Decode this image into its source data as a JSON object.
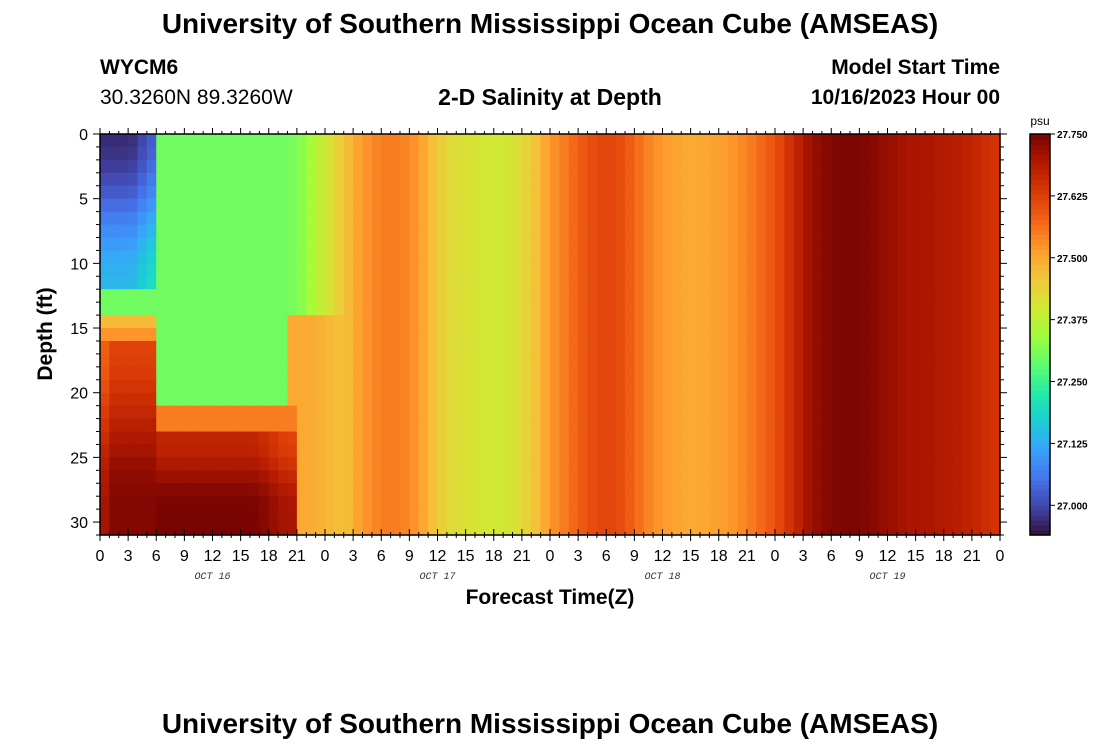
{
  "header": {
    "title": "University of Southern Mississippi Ocean Cube (AMSEAS)",
    "station": "WYCM6",
    "coordinates": "30.3260N  89.3260W",
    "subtitle": "2-D Salinity at Depth",
    "model_start_label": "Model Start Time",
    "model_start_value": "10/16/2023 Hour 00"
  },
  "footer": {
    "repeated_title": "University of Southern Mississippi Ocean Cube (AMSEAS)"
  },
  "chart_data": {
    "type": "heatmap",
    "title": "2-D Salinity at Depth",
    "xlabel": "Forecast Time(Z)",
    "ylabel": "Depth (ft)",
    "x_range_hours": [
      0,
      96
    ],
    "xlim": [
      0,
      96
    ],
    "ylim": [
      0,
      31
    ],
    "x_tick_hours": [
      0,
      3,
      6,
      9,
      12,
      15,
      18,
      21,
      24,
      27,
      30,
      33,
      36,
      39,
      42,
      45,
      48,
      51,
      54,
      57,
      60,
      63,
      66,
      69,
      72,
      75,
      78,
      81,
      84,
      87,
      90,
      93,
      96
    ],
    "x_tick_labels": [
      "0",
      "3",
      "6",
      "9",
      "12",
      "15",
      "18",
      "21",
      "0",
      "3",
      "6",
      "9",
      "12",
      "15",
      "18",
      "21",
      "0",
      "3",
      "6",
      "9",
      "12",
      "15",
      "18",
      "21",
      "0",
      "3",
      "6",
      "9",
      "12",
      "15",
      "18",
      "21",
      "0"
    ],
    "day_labels": [
      {
        "label": "OCT 16",
        "hour": 12
      },
      {
        "label": "OCT 17",
        "hour": 36
      },
      {
        "label": "OCT 18",
        "hour": 60
      },
      {
        "label": "OCT 19",
        "hour": 84
      }
    ],
    "y_ticks": [
      0,
      5,
      10,
      15,
      20,
      25,
      30
    ],
    "y_tick_labels": [
      "0",
      "5",
      "10",
      "15",
      "20",
      "25",
      "30"
    ],
    "colorbar": {
      "units": "psu",
      "vmin": 26.94,
      "vmax": 27.75,
      "ticks": [
        27.0,
        27.125,
        27.25,
        27.375,
        27.5,
        27.625,
        27.75
      ],
      "tick_labels": [
        "27.000",
        "27.125",
        "27.250",
        "27.375",
        "27.500",
        "27.625",
        "27.750"
      ],
      "colors": [
        "#30123b",
        "#4145ab",
        "#4675ed",
        "#39a2fc",
        "#1bcfd4",
        "#24eca6",
        "#61fc6c",
        "#a4fc3b",
        "#d1e834",
        "#f3c63a",
        "#fe9b2d",
        "#f36315",
        "#d93806",
        "#b11901",
        "#7a0402"
      ]
    },
    "surface_profile_hours": [
      0,
      5,
      6,
      8,
      9,
      10,
      12,
      14,
      16,
      18,
      20,
      22,
      24,
      26,
      28,
      30,
      32,
      34,
      36,
      38,
      40,
      42,
      44,
      46,
      48,
      50,
      52,
      54,
      56,
      58,
      60,
      62,
      64,
      66,
      68,
      70,
      72,
      74,
      76,
      78,
      80,
      82,
      84,
      86,
      88,
      90,
      92,
      94,
      96
    ],
    "surface_profile_psu": [
      26.97,
      27.05,
      27.3,
      27.3,
      27.3,
      27.3,
      27.3,
      27.3,
      27.3,
      27.3,
      27.3,
      27.33,
      27.4,
      27.46,
      27.52,
      27.55,
      27.55,
      27.52,
      27.45,
      27.42,
      27.41,
      27.4,
      27.41,
      27.45,
      27.52,
      27.56,
      27.6,
      27.62,
      27.6,
      27.55,
      27.52,
      27.5,
      27.5,
      27.51,
      27.53,
      27.56,
      27.6,
      27.66,
      27.72,
      27.74,
      27.75,
      27.74,
      27.72,
      27.7,
      27.7,
      27.69,
      27.68,
      27.66,
      27.64
    ],
    "cells_note": "Salinity field (psu) estimated per depth/time; deep early hours high (~27.75), upper early hours low (~26.97), later hours roughly depth-uniform"
  }
}
